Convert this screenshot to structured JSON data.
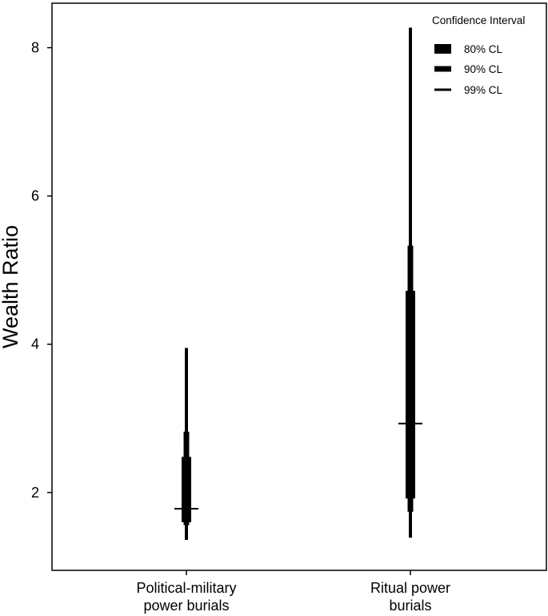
{
  "chart_data": {
    "type": "interval",
    "ylabel": "Wealth Ratio",
    "ylim": [
      0.95,
      8.6
    ],
    "yticks": [
      2,
      4,
      6,
      8
    ],
    "grid": false,
    "legend": {
      "title": "Confidence Interval",
      "position": "top-right",
      "entries": [
        "80% CL",
        "90% CL",
        "99% CL"
      ]
    },
    "categories": [
      {
        "name": "Political-military power burials",
        "label_lines": [
          "Political-military",
          "power burials"
        ]
      },
      {
        "name": "Ritual power burials",
        "label_lines": [
          "Ritual power",
          "burials"
        ]
      }
    ],
    "series": [
      {
        "category": "Political-military power burials",
        "median": 1.78,
        "ci80": [
          1.6,
          2.48
        ],
        "ci90": [
          1.56,
          2.82
        ],
        "ci99": [
          1.36,
          3.95
        ]
      },
      {
        "category": "Ritual power burials",
        "median": 2.93,
        "ci80": [
          1.92,
          4.72
        ],
        "ci90": [
          1.74,
          5.33
        ],
        "ci99": [
          1.39,
          8.27
        ]
      }
    ],
    "colors": {
      "mark": "#000000",
      "axis": "#000000",
      "background": "#ffffff"
    }
  }
}
